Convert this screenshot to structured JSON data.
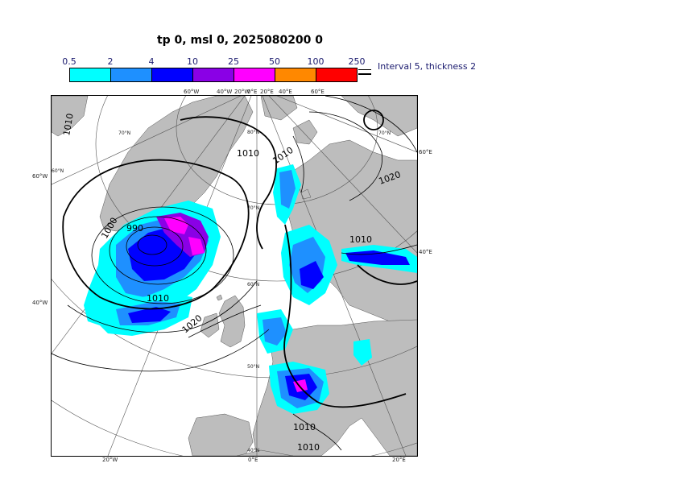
{
  "title": "tp 0, msl 0, 2025080200 0",
  "colorbar": {
    "ticks": [
      "0.5",
      "2",
      "4",
      "10",
      "25",
      "50",
      "100",
      "250"
    ],
    "colors": [
      "#00ffff",
      "#1e90ff",
      "#0000ff",
      "#8a00e6",
      "#ff00ff",
      "#ff8800",
      "#ff0000"
    ]
  },
  "legend": {
    "text": "Interval 5, thickness 2"
  },
  "map": {
    "grid_labels": {
      "top": [
        "60°W",
        "40°W",
        "20°W",
        "0°E",
        "20°E",
        "40°E",
        "60°E"
      ],
      "left": [
        "60°W",
        "40°W"
      ],
      "right": [
        "60°E",
        "40°E"
      ],
      "bottom": [
        "20°W",
        "0°E",
        "20°E"
      ],
      "lat": [
        "80°N",
        "70°N",
        "60°N",
        "50°N",
        "40°N",
        "70°N",
        "60°N"
      ]
    },
    "isobar_labels": [
      "1010",
      "1010",
      "1010",
      "1010",
      "1000",
      "990",
      "1020",
      "1010",
      "1010",
      "1010",
      "1020"
    ]
  }
}
